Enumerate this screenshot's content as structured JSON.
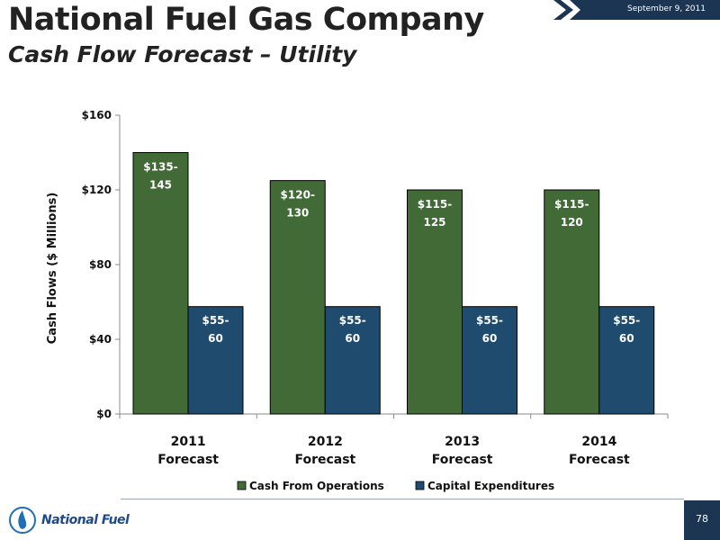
{
  "header": {
    "title": "National Fuel Gas Company",
    "subtitle": "Cash Flow Forecast – Utility",
    "date": "September 9, 2011"
  },
  "footer": {
    "logo_text": "National Fuel",
    "page_number": "78"
  },
  "colors": {
    "operations": "#416a37",
    "capex": "#1f4c6e",
    "banner": "#1b3552"
  },
  "icons": {
    "logo": "flame-logo-icon"
  },
  "chart_data": {
    "type": "bar",
    "title": "",
    "xlabel": "",
    "ylabel": "Cash Flows ($ Millions)",
    "ylim": [
      0,
      160
    ],
    "yticks": [
      0,
      40,
      80,
      120,
      160
    ],
    "ytick_labels": [
      "$0",
      "$40",
      "$80",
      "$120",
      "$160"
    ],
    "categories": [
      [
        "2011",
        "Forecast"
      ],
      [
        "2012",
        "Forecast"
      ],
      [
        "2013",
        "Forecast"
      ],
      [
        "2014",
        "Forecast"
      ]
    ],
    "legend_position": "bottom",
    "grid": false,
    "series": [
      {
        "name": "Cash From Operations",
        "color": "#416a37",
        "values": [
          140,
          125,
          120,
          120
        ],
        "labels": [
          [
            "$135-",
            "145"
          ],
          [
            "$120-",
            "130"
          ],
          [
            "$115-",
            "125"
          ],
          [
            "$115-",
            "120"
          ]
        ]
      },
      {
        "name": "Capital Expenditures",
        "color": "#1f4c6e",
        "values": [
          57.5,
          57.5,
          57.5,
          57.5
        ],
        "labels": [
          [
            "$55-",
            "60"
          ],
          [
            "$55-",
            "60"
          ],
          [
            "$55-",
            "60"
          ],
          [
            "$55-",
            "60"
          ]
        ]
      }
    ]
  }
}
